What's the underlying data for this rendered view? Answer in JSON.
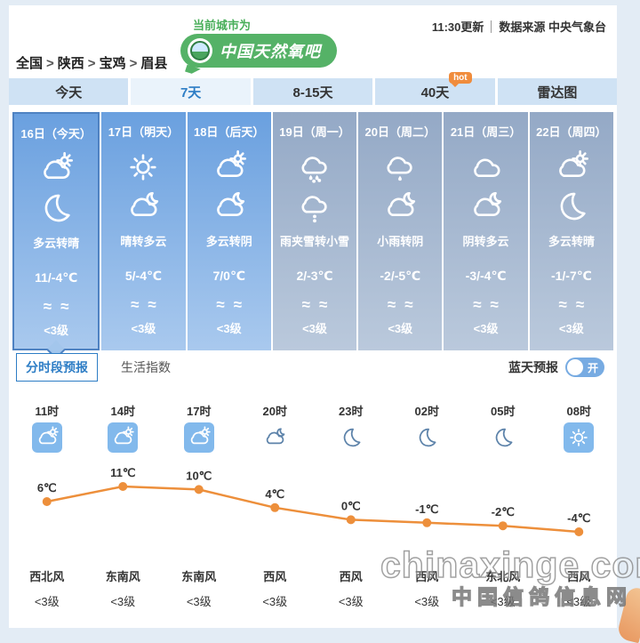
{
  "header": {
    "badge_label": "当前城市为",
    "badge_title": "中国天然氧吧",
    "update_time": "11:30更新",
    "source": "数据来源 中央气象台",
    "breadcrumb": [
      "全国",
      "陕西",
      "宝鸡",
      "眉县"
    ],
    "breadcrumb_separator": ">"
  },
  "tabs": [
    {
      "label": "今天",
      "active": false,
      "badge": ""
    },
    {
      "label": "7天",
      "active": true,
      "badge": ""
    },
    {
      "label": "8-15天",
      "active": false,
      "badge": ""
    },
    {
      "label": "40天",
      "active": false,
      "badge": "hot"
    },
    {
      "label": "雷达图",
      "active": false,
      "badge": ""
    }
  ],
  "wind_symbol": "≈≈",
  "days": [
    {
      "date": "16日（今天）",
      "day_icon": "cloud-sun",
      "night_icon": "moon",
      "desc": "多云转晴",
      "temp": "11/-4℃",
      "wind_level": "<3级",
      "selected": true,
      "muted": false
    },
    {
      "date": "17日（明天）",
      "day_icon": "sun",
      "night_icon": "cloud-moon",
      "desc": "晴转多云",
      "temp": "5/-4℃",
      "wind_level": "<3级",
      "selected": false,
      "muted": false
    },
    {
      "date": "18日（后天）",
      "day_icon": "cloud-sun",
      "night_icon": "cloud-moon",
      "desc": "多云转阴",
      "temp": "7/0℃",
      "wind_level": "<3级",
      "selected": false,
      "muted": false
    },
    {
      "date": "19日（周一）",
      "day_icon": "sleet",
      "night_icon": "snow",
      "desc": "雨夹雪转小雪",
      "temp": "2/-3℃",
      "wind_level": "<3级",
      "selected": false,
      "muted": true
    },
    {
      "date": "20日（周二）",
      "day_icon": "rain",
      "night_icon": "cloud-moon",
      "desc": "小雨转阴",
      "temp": "-2/-5℃",
      "wind_level": "<3级",
      "selected": false,
      "muted": true
    },
    {
      "date": "21日（周三）",
      "day_icon": "cloud",
      "night_icon": "cloud-moon",
      "desc": "阴转多云",
      "temp": "-3/-4℃",
      "wind_level": "<3级",
      "selected": false,
      "muted": true
    },
    {
      "date": "22日（周四）",
      "day_icon": "cloud-sun",
      "night_icon": "moon",
      "desc": "多云转晴",
      "temp": "-1/-7℃",
      "wind_level": "<3级",
      "selected": false,
      "muted": true
    }
  ],
  "subtabs": [
    {
      "label": "分时段预报",
      "active": true
    },
    {
      "label": "生活指数",
      "active": false
    }
  ],
  "blue_sky": {
    "label": "蓝天预报",
    "state": "开"
  },
  "hourly": [
    {
      "time": "11时",
      "icon": "cloud-sun",
      "boxed": true,
      "wind": "西北风",
      "level": "<3级"
    },
    {
      "time": "14时",
      "icon": "cloud-sun",
      "boxed": true,
      "wind": "东南风",
      "level": "<3级"
    },
    {
      "time": "17时",
      "icon": "cloud-sun",
      "boxed": true,
      "wind": "东南风",
      "level": "<3级"
    },
    {
      "time": "20时",
      "icon": "cloud-moon",
      "boxed": false,
      "wind": "西风",
      "level": "<3级"
    },
    {
      "time": "23时",
      "icon": "moon",
      "boxed": false,
      "wind": "西风",
      "level": "<3级"
    },
    {
      "time": "02时",
      "icon": "moon",
      "boxed": false,
      "wind": "西风",
      "level": "<3级"
    },
    {
      "time": "05时",
      "icon": "moon",
      "boxed": false,
      "wind": "东北风",
      "level": "<3级"
    },
    {
      "time": "08时",
      "icon": "sun",
      "boxed": true,
      "wind": "西风",
      "level": "<3级"
    }
  ],
  "chart_data": {
    "type": "line",
    "x": [
      "11时",
      "14时",
      "17时",
      "20时",
      "23时",
      "02时",
      "05时",
      "08时"
    ],
    "values": [
      6,
      11,
      10,
      4,
      0,
      -1,
      -2,
      -4
    ],
    "unit": "℃",
    "line_color": "#ED8F3B",
    "label_color": "#333333",
    "ylim": [
      -6,
      13
    ],
    "grid": false,
    "legend": "none"
  },
  "watermark": {
    "line1": "chinaxinge.com",
    "line2": "中国信鸽信息网"
  }
}
